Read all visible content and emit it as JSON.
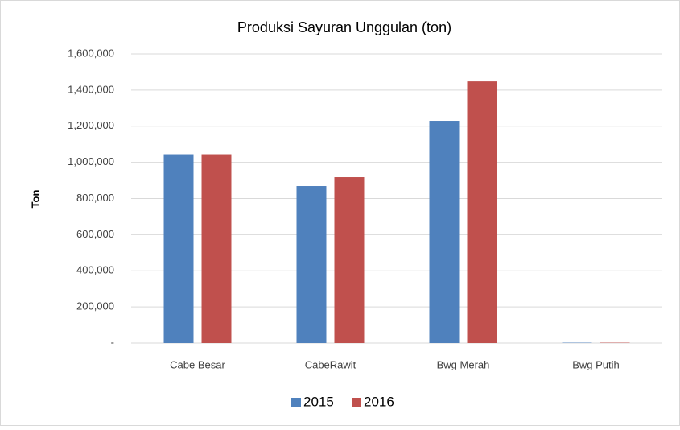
{
  "chart_data": {
    "type": "bar",
    "title": "Produksi Sayuran Unggulan (ton)",
    "y_label": "Ton",
    "categories": [
      "Cabe Besar",
      "CabeRawit",
      "Bwg Merah",
      "Bwg Putih"
    ],
    "series": [
      {
        "name": "2015",
        "color": "#4f81bd",
        "values": [
          1045000,
          869000,
          1230000,
          2000
        ]
      },
      {
        "name": "2016",
        "color": "#c0504d",
        "values": [
          1045000,
          918000,
          1448000,
          2000
        ]
      }
    ],
    "ylim": [
      0,
      1600000
    ],
    "yticks": [
      {
        "value": 0,
        "label": "-"
      },
      {
        "value": 200000,
        "label": "200,000"
      },
      {
        "value": 400000,
        "label": "400,000"
      },
      {
        "value": 600000,
        "label": "600,000"
      },
      {
        "value": 800000,
        "label": "800,000"
      },
      {
        "value": 1000000,
        "label": "1,000,000"
      },
      {
        "value": 1200000,
        "label": "1,200,000"
      },
      {
        "value": 1400000,
        "label": "1,400,000"
      },
      {
        "value": 1600000,
        "label": "1,600,000"
      }
    ],
    "grid": true,
    "legend": "bottom"
  }
}
